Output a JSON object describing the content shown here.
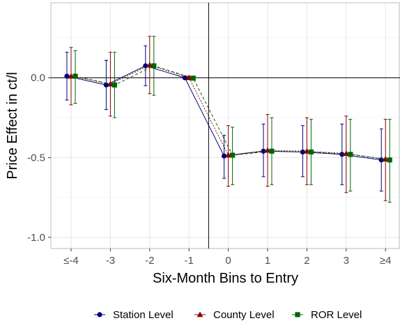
{
  "chart_data": {
    "type": "scatter",
    "title": "",
    "xlabel": "Six-Month Bins to Entry",
    "ylabel": "Price Effect in ct/l",
    "categories": [
      "≤-4",
      "-3",
      "-2",
      "-1",
      "0",
      "1",
      "2",
      "3",
      "≥4"
    ],
    "y_ticks": [
      -1.0,
      -0.5,
      0.0
    ],
    "y_tick_labels": [
      "-1.0",
      "-0.5",
      "0.0"
    ],
    "ylim": [
      -1.07,
      0.47
    ],
    "grid": true,
    "reference_lines": {
      "x_category": "between -1 and 0",
      "y": 0.0
    },
    "legend": {
      "position": "bottom"
    },
    "series": [
      {
        "name": "Station Level",
        "color": "#000080",
        "marker": "circle",
        "line_style": "solid",
        "values": [
          0.01,
          -0.045,
          0.075,
          0.0,
          -0.49,
          -0.46,
          -0.465,
          -0.48,
          -0.515
        ],
        "ci_low": [
          -0.14,
          -0.2,
          -0.05,
          -0.01,
          -0.63,
          -0.62,
          -0.62,
          -0.67,
          -0.71
        ],
        "ci_high": [
          0.16,
          0.11,
          0.2,
          0.01,
          -0.36,
          -0.29,
          -0.3,
          -0.29,
          -0.32
        ]
      },
      {
        "name": "County Level",
        "color": "#8b0000",
        "marker": "triangle",
        "line_style": "dotted",
        "values": [
          0.01,
          -0.04,
          0.08,
          0.0,
          -0.485,
          -0.455,
          -0.46,
          -0.475,
          -0.51
        ],
        "ci_low": [
          -0.17,
          -0.24,
          -0.1,
          -0.01,
          -0.68,
          -0.68,
          -0.67,
          -0.72,
          -0.77
        ],
        "ci_high": [
          0.19,
          0.16,
          0.26,
          0.01,
          -0.3,
          -0.23,
          -0.25,
          -0.24,
          -0.26
        ]
      },
      {
        "name": "ROR Level",
        "color": "#006400",
        "marker": "square",
        "line_style": "dashed",
        "values": [
          0.01,
          -0.045,
          0.075,
          -0.002,
          -0.485,
          -0.46,
          -0.465,
          -0.48,
          -0.515
        ],
        "ci_low": [
          -0.16,
          -0.25,
          -0.11,
          -0.01,
          -0.67,
          -0.67,
          -0.67,
          -0.71,
          -0.78
        ],
        "ci_high": [
          0.17,
          0.16,
          0.26,
          0.01,
          -0.31,
          -0.25,
          -0.26,
          -0.26,
          -0.26
        ]
      }
    ]
  }
}
